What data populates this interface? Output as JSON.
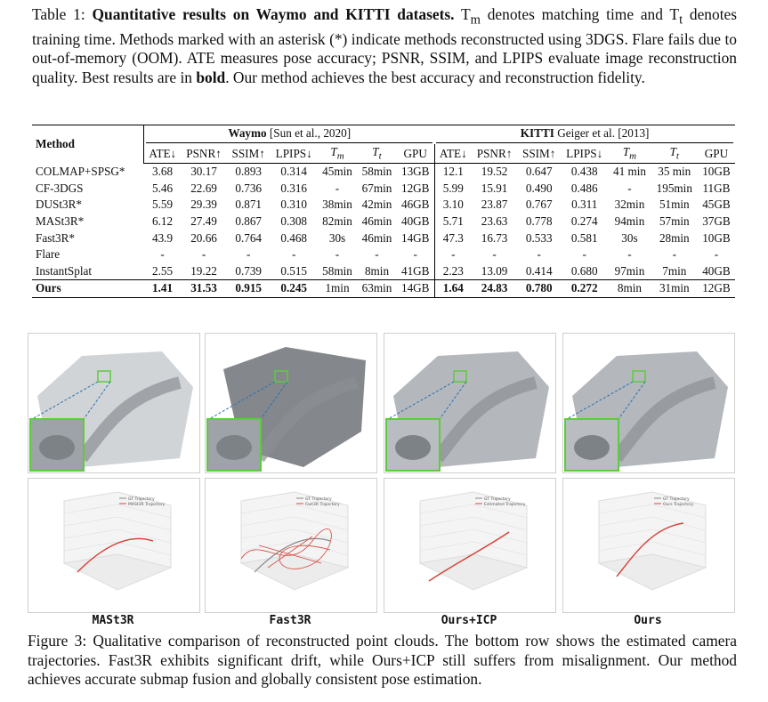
{
  "table": {
    "caption": [
      {
        "text": "Table 1: "
      },
      {
        "text": "Quantitative results on Waymo and KITTI datasets.",
        "bold": true
      },
      {
        "text": " T"
      },
      {
        "text": "m",
        "sub": true
      },
      {
        "text": " denotes matching time and T"
      },
      {
        "text": "t",
        "sub": true
      },
      {
        "text": " denotes training time. Methods marked with an asterisk (*) indicate methods reconstructed using 3DGS. Flare fails due to out-of-memory (OOM). ATE measures pose accuracy; PSNR, SSIM, and LPIPS evaluate image reconstruction quality. Best results are in "
      },
      {
        "text": "bold",
        "bold": true
      },
      {
        "text": ". Our method achieves the best accuracy and reconstruction fidelity."
      }
    ],
    "method_header": "Method",
    "groups": [
      {
        "name": "Waymo",
        "cite": " [Sun et al., 2020]"
      },
      {
        "name": "KITTI",
        "cite": " Geiger et al. [2013]"
      }
    ],
    "columns": [
      {
        "text": "ATE↓"
      },
      {
        "text": "PSNR↑"
      },
      {
        "text": "SSIM↑"
      },
      {
        "text": "LPIPS↓"
      },
      {
        "text": "T",
        "sub": "m"
      },
      {
        "text": "T",
        "sub": "t"
      },
      {
        "text": "GPU"
      }
    ],
    "rows": [
      {
        "method": "COLMAP+SPSG*",
        "cells": [
          "3.68",
          "30.17",
          "0.893",
          "0.314",
          "45min",
          "58min",
          "13GB",
          "12.1",
          "19.52",
          "0.647",
          "0.438",
          "41 min",
          "35 min",
          "10GB"
        ]
      },
      {
        "method": "CF-3DGS",
        "cells": [
          "5.46",
          "22.69",
          "0.736",
          "0.316",
          "-",
          "67min",
          "12GB",
          "5.99",
          "15.91",
          "0.490",
          "0.486",
          "-",
          "195min",
          "11GB"
        ]
      },
      {
        "method": "DUSt3R*",
        "cells": [
          "5.59",
          "29.39",
          "0.871",
          "0.310",
          "38min",
          "42min",
          "46GB",
          "3.10",
          "23.87",
          "0.767",
          "0.311",
          "32min",
          "51min",
          "45GB"
        ]
      },
      {
        "method": "MASt3R*",
        "cells": [
          "6.12",
          "27.49",
          "0.867",
          "0.308",
          "82min",
          "46min",
          "40GB",
          "5.71",
          "23.63",
          "0.778",
          "0.274",
          "94min",
          "57min",
          "37GB"
        ]
      },
      {
        "method": "Fast3R*",
        "cells": [
          "43.9",
          "20.66",
          "0.764",
          "0.468",
          "30s",
          "46min",
          "14GB",
          "47.3",
          "16.73",
          "0.533",
          "0.581",
          "30s",
          "28min",
          "10GB"
        ]
      },
      {
        "method": "Flare",
        "cells": [
          "-",
          "-",
          "-",
          "-",
          "-",
          "-",
          "-",
          "-",
          "-",
          "-",
          "-",
          "-",
          "-",
          "-"
        ]
      },
      {
        "method": "InstantSplat",
        "cells": [
          "2.55",
          "19.22",
          "0.739",
          "0.515",
          "58min",
          "8min",
          "41GB",
          "2.23",
          "13.09",
          "0.414",
          "0.680",
          "97min",
          "7min",
          "40GB"
        ]
      },
      {
        "method": "Ours",
        "bold": true,
        "bold_cells": [
          0,
          1,
          2,
          3,
          7,
          8,
          9,
          10
        ],
        "cells": [
          "1.41",
          "31.53",
          "0.915",
          "0.245",
          "1min",
          "63min",
          "14GB",
          "1.64",
          "24.83",
          "0.780",
          "0.272",
          "8min",
          "31min",
          "12GB"
        ]
      }
    ]
  },
  "figure": {
    "panels": [
      {
        "label": "MASt3R",
        "legend": [
          "GT Trajectory",
          "MASt3R Trajectory"
        ]
      },
      {
        "label": "Fast3R",
        "legend": [
          "GT Trajectory",
          "Fast3R Trajectory"
        ]
      },
      {
        "label": "Ours+ICP",
        "legend": [
          "GT Trajectory",
          "Estimated Trajectory"
        ]
      },
      {
        "label": "Ours",
        "legend": [
          "GT Trajectory",
          "Ours Trajectory"
        ]
      }
    ],
    "caption": "Figure 3: Qualitative comparison of reconstructed point clouds. The bottom row shows the estimated camera trajectories. Fast3R exhibits significant drift, while Ours+ICP still suffers from misalignment. Our method achieves accurate submap fusion and globally consistent pose estimation."
  }
}
